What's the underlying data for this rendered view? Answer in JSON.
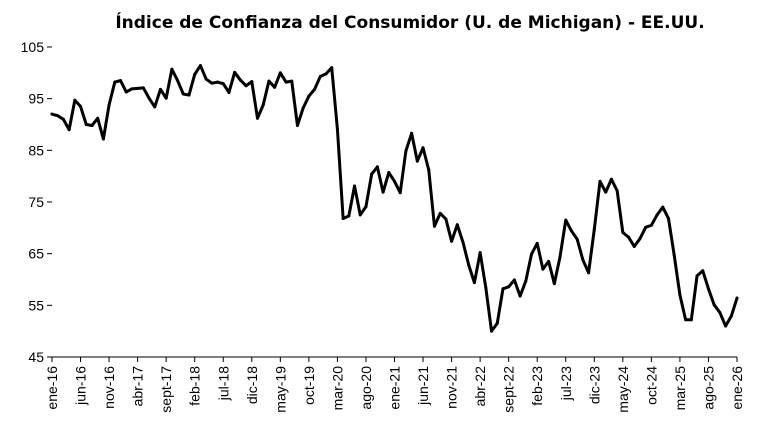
{
  "chart_data": {
    "type": "line",
    "title": "Índice de Confianza del Consumidor (U. de Michigan) - EE.UU.",
    "xlabel": "",
    "ylabel": "",
    "ylim": [
      45,
      105
    ],
    "yticks": [
      45,
      55,
      65,
      75,
      85,
      95,
      105
    ],
    "grid": false,
    "legend": "none",
    "line_color": "#000000",
    "x_start": "ene-16",
    "x_end": "ene-26",
    "xtick_labels": [
      "ene-16",
      "jun-16",
      "nov-16",
      "abr-17",
      "sept-17",
      "feb-18",
      "jul-18",
      "dic-18",
      "may-19",
      "oct-19",
      "mar-20",
      "ago-20",
      "ene-21",
      "jun-21",
      "nov-21",
      "abr-22",
      "sept-22",
      "feb-23",
      "jul-23",
      "dic-23",
      "may-24",
      "oct-24",
      "mar-25",
      "ago-25",
      "ene-26"
    ],
    "series": [
      {
        "name": "Índice de Confianza del Consumidor",
        "values": [
          92.0,
          91.7,
          91.0,
          89.0,
          94.7,
          93.5,
          90.0,
          89.8,
          91.2,
          87.2,
          93.8,
          98.2,
          98.5,
          96.3,
          96.9,
          97.0,
          97.1,
          95.1,
          93.4,
          96.8,
          95.1,
          100.7,
          98.5,
          95.9,
          95.7,
          99.7,
          101.4,
          98.8,
          98.0,
          98.2,
          97.9,
          96.2,
          100.1,
          98.6,
          97.5,
          98.3,
          91.2,
          93.8,
          98.4,
          97.2,
          100.0,
          98.2,
          98.4,
          89.8,
          93.2,
          95.5,
          96.8,
          99.3,
          99.8,
          101.0,
          89.1,
          71.8,
          72.3,
          78.1,
          72.5,
          74.1,
          80.4,
          81.8,
          76.9,
          80.7,
          79.0,
          76.8,
          84.9,
          88.3,
          82.9,
          85.5,
          81.2,
          70.3,
          72.8,
          71.7,
          67.4,
          70.6,
          67.2,
          62.8,
          59.4,
          65.2,
          58.4,
          50.0,
          51.5,
          58.2,
          58.6,
          59.9,
          56.8,
          59.7,
          64.9,
          67.0,
          62.0,
          63.5,
          59.2,
          64.4,
          71.5,
          69.4,
          67.8,
          63.8,
          61.3,
          69.7,
          79.0,
          76.9,
          79.4,
          77.2,
          69.1,
          68.2,
          66.4,
          67.9,
          70.1,
          70.5,
          72.5,
          74.0,
          71.8,
          64.7,
          57.0,
          52.2,
          52.2,
          60.7,
          61.7,
          58.2,
          55.1,
          53.6,
          51.0,
          52.9,
          56.4
        ]
      }
    ]
  }
}
